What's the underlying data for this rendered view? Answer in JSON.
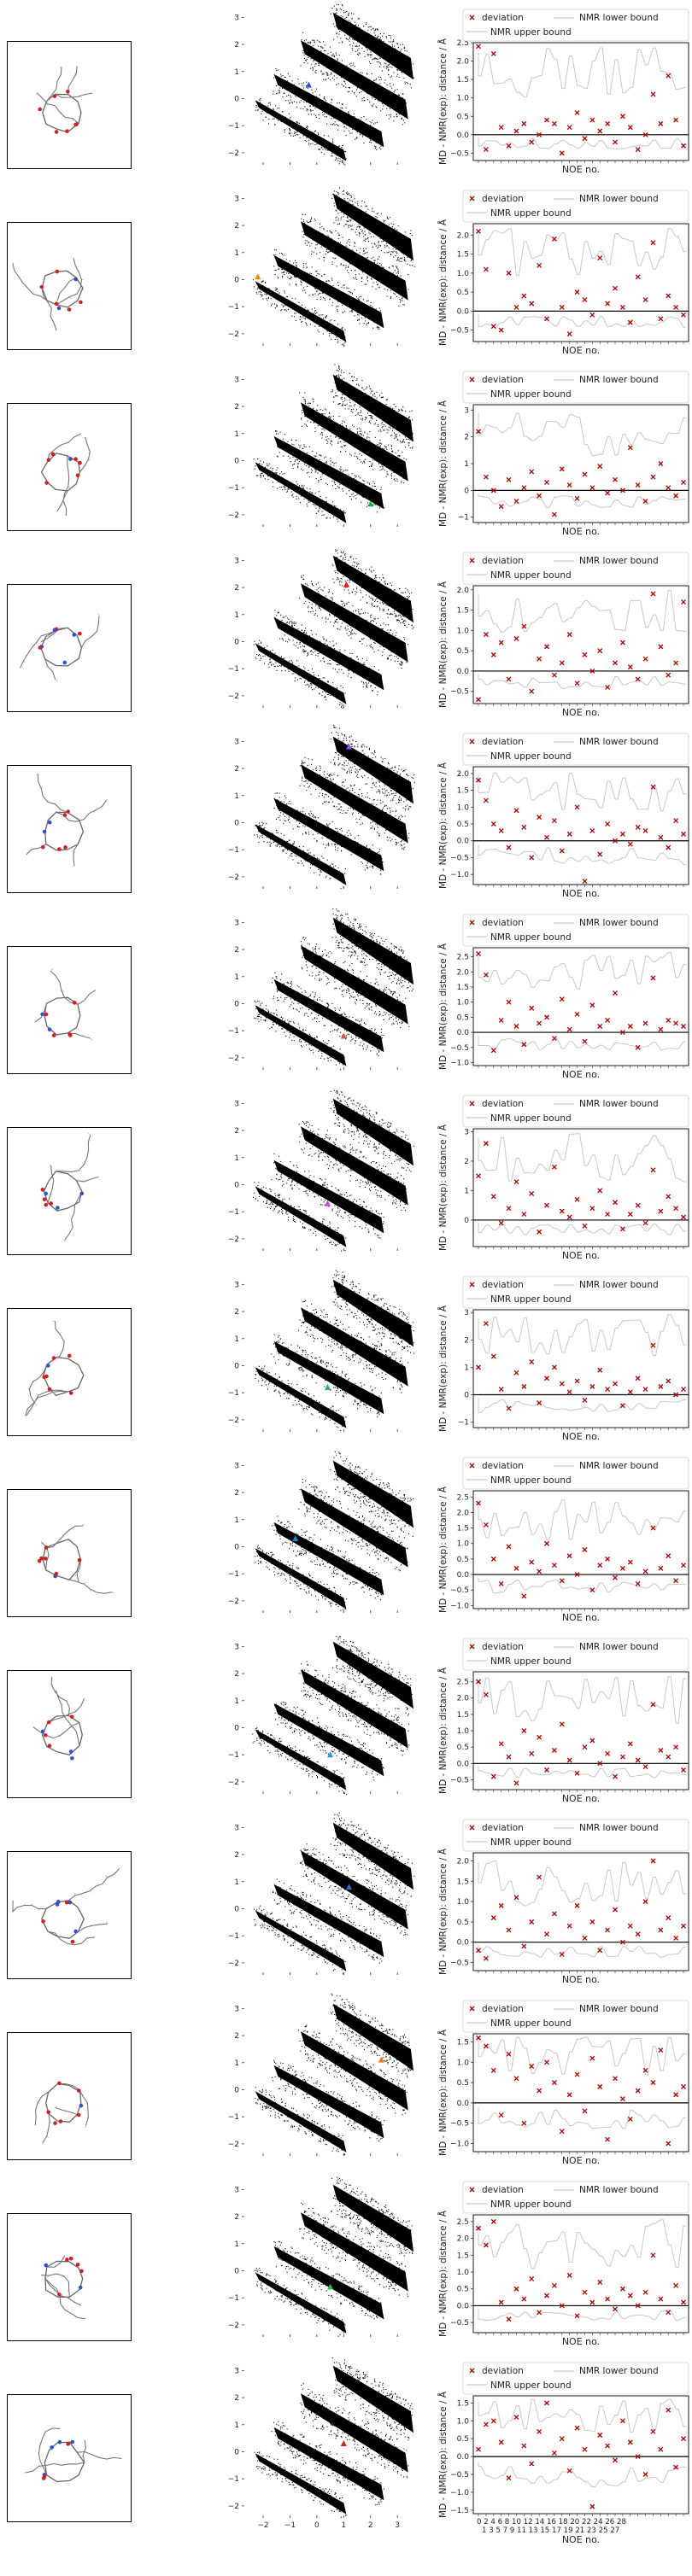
{
  "common": {
    "scatter_xticks": [
      "−2",
      "−1",
      "0",
      "1",
      "2",
      "3"
    ],
    "scatter_yticks": [
      "3",
      "2",
      "1",
      "0",
      "−1",
      "−2"
    ],
    "ylabel": "MD - NMR(exp): distance / Å",
    "xlabel": "NOE no.",
    "legend": {
      "deviation": "deviation",
      "lower": "NMR lower bound",
      "upper": "NMR upper bound"
    },
    "bottom_xticks_row1": "0  2  4  6  8  10 12 14 16 18 20 22 24 26 28",
    "bottom_xticks_row2": "1  3  5  7  9  11 13 15 17 19 21 23 25 27",
    "colors": {
      "marker": "#b00000",
      "bound": "#c8c8c8",
      "zero": "#000000"
    }
  },
  "chart_data": [
    {
      "type": "scatter",
      "panel": 1,
      "highlight": {
        "x": -0.3,
        "y": 0.5,
        "color": "#2255dd"
      },
      "yticks": [
        "2.5",
        "2.0",
        "1.5",
        "1.0",
        "0.5",
        "0.0",
        "−0.5"
      ],
      "ylim": [
        -0.7,
        2.5
      ],
      "deviation": [
        2.4,
        -0.4,
        2.2,
        0.2,
        -0.3,
        0.1,
        0.3,
        -0.2,
        0.0,
        0.4,
        0.3,
        -0.5,
        0.2,
        0.6,
        -0.1,
        0.4,
        0.1,
        0.3,
        -0.2,
        0.5,
        0.2,
        -0.4,
        0.0,
        1.1,
        0.3,
        1.6,
        0.4,
        -0.3
      ]
    },
    {
      "type": "scatter",
      "panel": 2,
      "highlight": {
        "x": -2.2,
        "y": 0.1,
        "color": "#f08a00"
      },
      "yticks": [
        "2.0",
        "1.5",
        "1.0",
        "0.5",
        "0.0",
        "−0.5"
      ],
      "ylim": [
        -0.8,
        2.3
      ],
      "deviation": [
        2.1,
        1.1,
        -0.4,
        -0.5,
        1.0,
        0.1,
        0.4,
        0.2,
        1.2,
        -0.2,
        1.9,
        0.1,
        -0.6,
        0.5,
        0.3,
        -0.1,
        1.4,
        0.2,
        0.6,
        0.1,
        -0.3,
        0.9,
        0.3,
        1.8,
        -0.2,
        0.4,
        0.1,
        -0.1
      ]
    },
    {
      "type": "scatter",
      "panel": 3,
      "highlight": {
        "x": 2.0,
        "y": -1.6,
        "color": "#22aa44"
      },
      "yticks": [
        "3",
        "2",
        "1",
        "0",
        "−1"
      ],
      "ylim": [
        -1.2,
        3.2
      ],
      "deviation": [
        2.2,
        0.5,
        0.0,
        -0.6,
        0.4,
        -0.4,
        0.1,
        0.7,
        -0.2,
        0.3,
        -0.9,
        0.8,
        0.2,
        -0.3,
        0.6,
        0.1,
        0.9,
        -0.1,
        0.4,
        0.0,
        1.6,
        0.2,
        -0.4,
        0.5,
        1.0,
        0.1,
        -0.2,
        0.3
      ]
    },
    {
      "type": "scatter",
      "panel": 4,
      "highlight": {
        "x": 1.1,
        "y": 2.1,
        "color": "#dd2222"
      },
      "yticks": [
        "2.0",
        "1.5",
        "1.0",
        "0.5",
        "0.0",
        "−0.5"
      ],
      "ylim": [
        -0.8,
        2.1
      ],
      "deviation": [
        -0.7,
        0.9,
        0.4,
        0.7,
        -0.2,
        0.8,
        1.1,
        -0.5,
        0.3,
        0.6,
        -0.1,
        0.2,
        0.9,
        -0.3,
        0.4,
        0.0,
        0.5,
        -0.4,
        0.2,
        0.7,
        0.1,
        -0.2,
        0.3,
        1.9,
        0.6,
        -0.1,
        0.2,
        1.7
      ]
    },
    {
      "type": "scatter",
      "panel": 5,
      "highlight": {
        "x": 1.2,
        "y": 2.8,
        "color": "#8855ee"
      },
      "yticks": [
        "2.0",
        "1.5",
        "1.0",
        "0.5",
        "0.0",
        "−0.5",
        "−1.0"
      ],
      "ylim": [
        -1.3,
        2.2
      ],
      "deviation": [
        1.8,
        1.2,
        0.5,
        0.3,
        -0.2,
        0.9,
        0.4,
        -0.5,
        0.7,
        0.1,
        0.6,
        -0.3,
        0.2,
        1.0,
        -1.2,
        0.3,
        -0.4,
        0.5,
        0.0,
        0.2,
        -0.1,
        0.4,
        0.3,
        1.6,
        0.1,
        -0.2,
        0.6,
        0.2
      ]
    },
    {
      "type": "scatter",
      "panel": 6,
      "highlight": {
        "x": 1.0,
        "y": -1.2,
        "color": "#e05050"
      },
      "yticks": [
        "2.5",
        "2.0",
        "1.5",
        "1.0",
        "0.5",
        "0.0",
        "−0.5",
        "−1.0"
      ],
      "ylim": [
        -1.1,
        2.8
      ],
      "deviation": [
        2.6,
        1.9,
        -0.6,
        0.4,
        1.0,
        0.2,
        -0.4,
        0.8,
        0.3,
        0.5,
        -0.2,
        1.1,
        0.1,
        0.6,
        -0.3,
        0.9,
        0.2,
        0.4,
        1.3,
        0.0,
        0.2,
        -0.5,
        0.3,
        1.8,
        0.1,
        0.4,
        0.3,
        0.2
      ]
    },
    {
      "type": "scatter",
      "panel": 7,
      "highlight": {
        "x": 0.4,
        "y": -0.7,
        "color": "#cc44cc"
      },
      "yticks": [
        "3",
        "2",
        "1",
        "0"
      ],
      "ylim": [
        -0.9,
        3.1
      ],
      "deviation": [
        1.5,
        2.6,
        0.8,
        -0.1,
        0.4,
        1.3,
        0.2,
        0.9,
        -0.4,
        0.5,
        1.8,
        0.3,
        0.1,
        0.7,
        -0.2,
        0.4,
        1.0,
        0.2,
        0.6,
        -0.3,
        0.2,
        0.5,
        -0.1,
        1.7,
        0.3,
        0.8,
        0.4,
        0.1
      ]
    },
    {
      "type": "scatter",
      "panel": 8,
      "highlight": {
        "x": 0.4,
        "y": -0.8,
        "color": "#22aa88"
      },
      "yticks": [
        "3",
        "2",
        "1",
        "0",
        "−1"
      ],
      "ylim": [
        -1.2,
        3.1
      ],
      "deviation": [
        1.0,
        2.6,
        1.4,
        0.2,
        -0.5,
        0.8,
        0.3,
        1.2,
        -0.3,
        0.6,
        1.0,
        0.4,
        0.1,
        0.5,
        -0.2,
        0.3,
        0.9,
        0.2,
        0.4,
        -0.4,
        0.1,
        0.6,
        0.2,
        1.8,
        0.3,
        0.5,
        0.0,
        0.2
      ]
    },
    {
      "type": "scatter",
      "panel": 9,
      "highlight": {
        "x": -0.8,
        "y": 0.3,
        "color": "#1188cc"
      },
      "yticks": [
        "2.5",
        "2.0",
        "1.5",
        "1.0",
        "0.5",
        "0.0",
        "−0.5",
        "−1.0"
      ],
      "ylim": [
        -1.1,
        2.7
      ],
      "deviation": [
        2.3,
        1.6,
        0.5,
        -0.3,
        0.9,
        0.2,
        -0.7,
        0.4,
        0.1,
        1.0,
        0.3,
        -0.2,
        0.6,
        0.0,
        0.8,
        -0.5,
        0.3,
        0.5,
        -0.1,
        0.2,
        0.4,
        -0.3,
        0.1,
        1.5,
        0.2,
        0.6,
        -0.2,
        0.3
      ]
    },
    {
      "type": "scatter",
      "panel": 10,
      "highlight": {
        "x": 0.5,
        "y": -1.0,
        "color": "#2299dd"
      },
      "yticks": [
        "2.5",
        "2.0",
        "1.5",
        "1.0",
        "0.5",
        "0.0",
        "−0.5"
      ],
      "ylim": [
        -0.8,
        2.8
      ],
      "deviation": [
        2.5,
        2.1,
        -0.4,
        0.6,
        0.2,
        -0.6,
        1.0,
        0.3,
        0.8,
        -0.2,
        0.4,
        1.2,
        0.1,
        -0.3,
        0.5,
        0.7,
        0.0,
        0.3,
        -0.4,
        0.2,
        0.6,
        0.1,
        -0.1,
        1.8,
        0.4,
        0.2,
        0.5,
        -0.2
      ]
    },
    {
      "type": "scatter",
      "panel": 11,
      "highlight": {
        "x": 1.2,
        "y": 0.8,
        "color": "#3366cc"
      },
      "yticks": [
        "2.0",
        "1.5",
        "1.0",
        "0.5",
        "0.0",
        "−0.5"
      ],
      "ylim": [
        -0.7,
        2.2
      ],
      "deviation": [
        -0.2,
        -0.4,
        0.6,
        0.9,
        0.3,
        1.1,
        -0.1,
        0.5,
        1.6,
        0.2,
        0.7,
        -0.3,
        0.4,
        0.9,
        0.1,
        0.5,
        -0.2,
        0.3,
        0.8,
        0.0,
        0.4,
        0.2,
        1.0,
        2.0,
        0.3,
        0.6,
        0.1,
        0.4
      ]
    },
    {
      "type": "scatter",
      "panel": 12,
      "highlight": {
        "x": 2.4,
        "y": 1.1,
        "color": "#ee7722"
      },
      "yticks": [
        "1.5",
        "1.0",
        "0.5",
        "0.0",
        "−0.5",
        "−1.0"
      ],
      "ylim": [
        -1.2,
        1.7
      ],
      "deviation": [
        1.6,
        1.4,
        0.8,
        -0.3,
        1.2,
        0.6,
        -0.5,
        0.9,
        0.3,
        1.0,
        0.5,
        -0.7,
        0.2,
        0.7,
        -0.2,
        1.1,
        0.4,
        -0.9,
        0.6,
        0.1,
        -0.4,
        0.3,
        0.8,
        0.5,
        1.3,
        -1.0,
        0.2,
        0.4
      ]
    },
    {
      "type": "scatter",
      "panel": 13,
      "highlight": {
        "x": 0.5,
        "y": -0.6,
        "color": "#22bb44"
      },
      "yticks": [
        "2.5",
        "2.0",
        "1.5",
        "1.0",
        "0.5",
        "0.0",
        "−0.5"
      ],
      "ylim": [
        -0.8,
        2.7
      ],
      "deviation": [
        2.3,
        1.8,
        2.5,
        0.1,
        -0.4,
        0.5,
        0.2,
        0.8,
        -0.2,
        0.3,
        0.6,
        0.0,
        0.9,
        -0.3,
        0.4,
        0.1,
        0.7,
        0.2,
        -0.1,
        0.5,
        0.3,
        0.0,
        0.4,
        1.5,
        0.2,
        -0.2,
        0.6,
        0.1
      ]
    },
    {
      "type": "scatter",
      "panel": 14,
      "highlight": {
        "x": 1.0,
        "y": 0.3,
        "color": "#cc2222"
      },
      "yticks": [
        "1.5",
        "1.0",
        "0.5",
        "0.0",
        "−0.5",
        "−1.0",
        "−1.5"
      ],
      "ylim": [
        -1.6,
        1.7
      ],
      "deviation": [
        0.2,
        0.9,
        1.0,
        0.4,
        -0.6,
        1.1,
        0.3,
        -0.2,
        0.7,
        1.5,
        0.1,
        0.5,
        -0.4,
        0.8,
        0.2,
        -1.4,
        0.6,
        0.3,
        -0.1,
        1.0,
        0.4,
        0.0,
        -0.5,
        0.7,
        0.2,
        1.3,
        -0.3,
        0.5
      ]
    }
  ]
}
